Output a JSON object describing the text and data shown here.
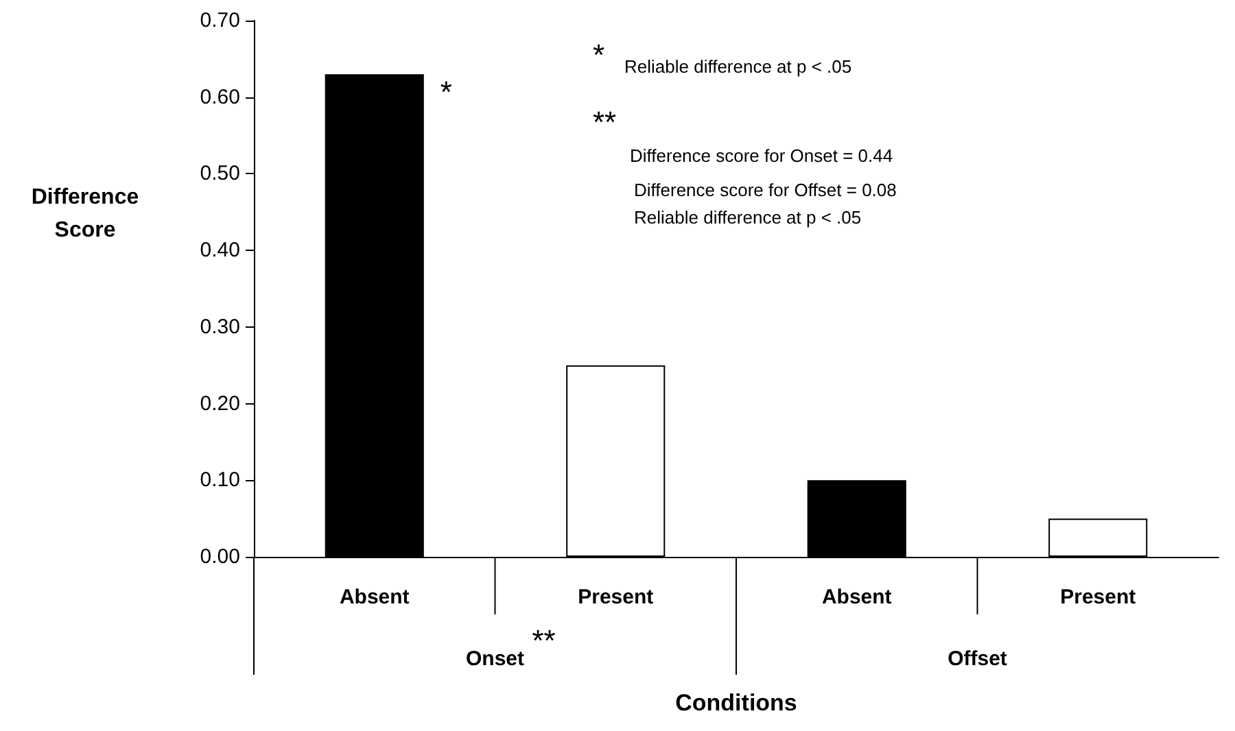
{
  "chart_data": {
    "type": "bar",
    "categories": [
      "Absent",
      "Present",
      "Absent",
      "Present"
    ],
    "values": [
      0.63,
      0.25,
      0.1,
      0.05
    ],
    "colors": [
      "#000000",
      "#ffffff",
      "#000000",
      "#ffffff"
    ],
    "ylabel": "Difference Score",
    "xlabel": "Conditions",
    "ylim": [
      0,
      0.7
    ],
    "yticks": [
      {
        "value": 0,
        "label": "0.00"
      },
      {
        "value": 0.1,
        "label": "0.10"
      },
      {
        "value": 0.2,
        "label": "0.20"
      },
      {
        "value": 0.3,
        "label": "0.30"
      },
      {
        "value": 0.4,
        "label": "0.40"
      },
      {
        "value": 0.5,
        "label": "0.50"
      },
      {
        "value": 0.6,
        "label": "0.60"
      },
      {
        "value": 0.7,
        "label": "0.70"
      }
    ],
    "annotations": [
      "*",
      "*",
      "Reliable difference at p < .05",
      "**",
      "Difference score for Onset = 0.44",
      "Difference score for Offset = 0.08",
      "Reliable difference at p < .05",
      "Onset",
      "**",
      "Offset"
    ],
    "grid": false
  }
}
